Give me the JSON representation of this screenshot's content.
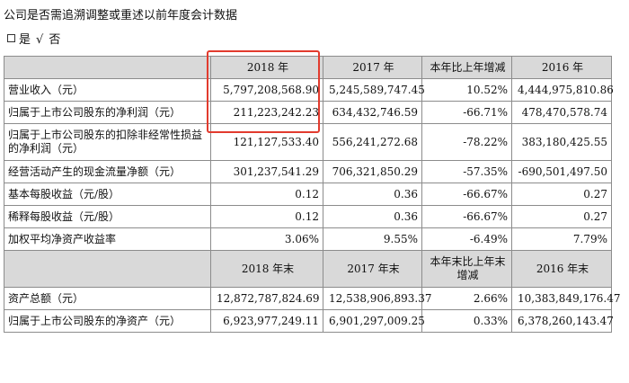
{
  "heading": "公司是否需追溯调整或重述以前年度会计数据",
  "choice": {
    "box": "□",
    "yes_label": "是",
    "check_mark": "√",
    "no_label": "否"
  },
  "table": {
    "header1": [
      "",
      "2018 年",
      "2017 年",
      "本年比上年增减",
      "2016 年"
    ],
    "rows1": [
      [
        "营业收入（元）",
        "5,797,208,568.90",
        "5,245,589,747.45",
        "10.52%",
        "4,444,975,810.86"
      ],
      [
        "归属于上市公司股东的净利润（元）",
        "211,223,242.23",
        "634,432,746.59",
        "-66.71%",
        "478,470,578.74"
      ],
      [
        "归属于上市公司股东的扣除非经常性损益的净利润（元）",
        "121,127,533.40",
        "556,241,272.68",
        "-78.22%",
        "383,180,425.55"
      ],
      [
        "经营活动产生的现金流量净额（元）",
        "301,237,541.29",
        "706,321,850.29",
        "-57.35%",
        "-690,501,497.50"
      ],
      [
        "基本每股收益（元/股）",
        "0.12",
        "0.36",
        "-66.67%",
        "0.27"
      ],
      [
        "稀释每股收益（元/股）",
        "0.12",
        "0.36",
        "-66.67%",
        "0.27"
      ],
      [
        "加权平均净资产收益率",
        "3.06%",
        "9.55%",
        "-6.49%",
        "7.79%"
      ]
    ],
    "header2": [
      "",
      "2018 年末",
      "2017 年末",
      "本年末比上年末增减",
      "2016 年末"
    ],
    "rows2": [
      [
        "资产总额（元）",
        "12,872,787,824.69",
        "12,538,906,893.37",
        "2.66%",
        "10,383,849,176.47"
      ],
      [
        "归属于上市公司股东的净资产（元）",
        "6,923,977,249.11",
        "6,901,297,009.25",
        "0.33%",
        "6,378,260,143.47"
      ]
    ]
  },
  "colors": {
    "highlight": "#e23b2e",
    "header_bg": "#d9d9d9",
    "grid": "#8c8c8c"
  }
}
